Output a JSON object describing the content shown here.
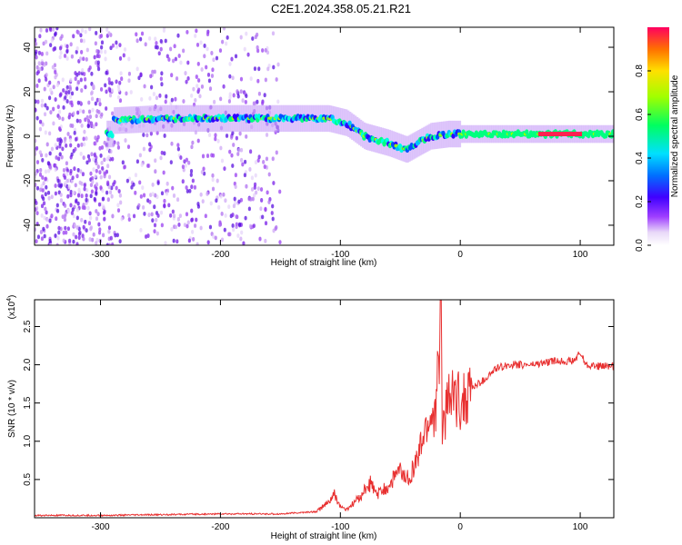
{
  "title": "C2E1.2024.358.05.21.R21",
  "chart_data": [
    {
      "type": "heatmap",
      "xlabel": "Height of straight line (km)",
      "ylabel": "Frequency (Hz)",
      "xlim": [
        -355,
        128
      ],
      "ylim": [
        -49,
        49
      ],
      "xticks": [
        -300,
        -200,
        -100,
        0,
        100
      ],
      "yticks": [
        -40,
        -20,
        0,
        20,
        40
      ],
      "colorbar": {
        "label": "Normalized spectral amplitude",
        "range": [
          0,
          1
        ],
        "ticks": [
          0.0,
          0.2,
          0.4,
          0.6,
          0.8
        ],
        "tick_labels": [
          "0.0",
          "0.2",
          "0.4",
          "0.6",
          "0.8"
        ]
      },
      "ridge": [
        {
          "x": -290,
          "f": 7
        },
        {
          "x": -250,
          "f": 8
        },
        {
          "x": -200,
          "f": 8
        },
        {
          "x": -150,
          "f": 8
        },
        {
          "x": -110,
          "f": 8
        },
        {
          "x": -95,
          "f": 6
        },
        {
          "x": -80,
          "f": 0
        },
        {
          "x": -60,
          "f": -3
        },
        {
          "x": -45,
          "f": -6
        },
        {
          "x": -35,
          "f": -3
        },
        {
          "x": -25,
          "f": 0
        },
        {
          "x": -10,
          "f": 1
        },
        {
          "x": 0,
          "f": 1
        },
        {
          "x": 30,
          "f": 1
        },
        {
          "x": 60,
          "f": 1
        },
        {
          "x": 80,
          "f": 1
        },
        {
          "x": 100,
          "f": 1
        },
        {
          "x": 128,
          "f": 1
        }
      ]
    },
    {
      "type": "line",
      "xlabel": "Height of straight line (km)",
      "ylabel": "SNR (10 * v/v)",
      "yscale_label": "(x10",
      "yscale_exp": "4",
      "yscale_close": ")",
      "xlim": [
        -355,
        128
      ],
      "ylim": [
        0,
        2.85
      ],
      "xticks": [
        -300,
        -200,
        -100,
        0,
        100
      ],
      "yticks": [
        0.5,
        1.0,
        1.5,
        2.0,
        2.5
      ],
      "ytick_labels": [
        "0.5",
        "1.0",
        "1.5",
        "2.0",
        "2.5"
      ],
      "color": "#e83030",
      "series": [
        {
          "values": [
            [
              -355,
              0.03
            ],
            [
              -300,
              0.03
            ],
            [
              -250,
              0.04
            ],
            [
              -200,
              0.05
            ],
            [
              -150,
              0.05
            ],
            [
              -120,
              0.08
            ],
            [
              -110,
              0.2
            ],
            [
              -105,
              0.3
            ],
            [
              -100,
              0.15
            ],
            [
              -95,
              0.1
            ],
            [
              -85,
              0.25
            ],
            [
              -75,
              0.45
            ],
            [
              -70,
              0.3
            ],
            [
              -60,
              0.4
            ],
            [
              -55,
              0.55
            ],
            [
              -50,
              0.6
            ],
            [
              -45,
              0.5
            ],
            [
              -40,
              0.6
            ],
            [
              -35,
              0.8
            ],
            [
              -30,
              1.1
            ],
            [
              -25,
              1.3
            ],
            [
              -20,
              1.4
            ],
            [
              -16,
              2.85
            ],
            [
              -15,
              1.2
            ],
            [
              -10,
              1.5
            ],
            [
              -5,
              1.6
            ],
            [
              0,
              1.5
            ],
            [
              5,
              1.6
            ],
            [
              10,
              1.7
            ],
            [
              20,
              1.8
            ],
            [
              30,
              1.95
            ],
            [
              40,
              2.0
            ],
            [
              60,
              2.0
            ],
            [
              80,
              2.05
            ],
            [
              95,
              2.05
            ],
            [
              100,
              2.15
            ],
            [
              105,
              2.0
            ],
            [
              115,
              1.98
            ],
            [
              128,
              1.98
            ]
          ]
        }
      ]
    }
  ]
}
